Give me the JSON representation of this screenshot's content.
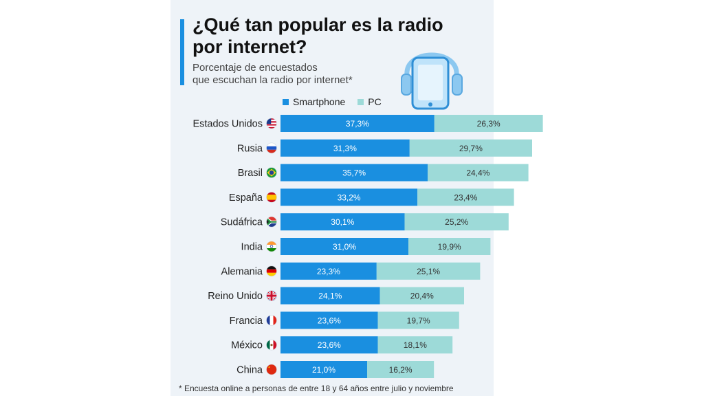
{
  "header": {
    "title": "¿Qué tan popular es la radio por internet?",
    "subtitle_line1": "Porcentaje de encuestados",
    "subtitle_line2": "que escuchan la radio por internet*"
  },
  "footnote": "* Encuesta online a personas de entre 18 y 64 años entre julio y noviembre",
  "colors": {
    "smartphone": "#1a8fe0",
    "pc": "#9ddad8",
    "accent": "#1a8fe0",
    "label_dark": "#ffffff",
    "label_light": "#333333"
  },
  "chart_data": {
    "type": "bar",
    "orientation": "horizontal",
    "stacked": true,
    "categories": [
      "Estados Unidos",
      "Rusia",
      "Brasil",
      "España",
      "Sudáfrica",
      "India",
      "Alemania",
      "Reino Unido",
      "Francia",
      "México",
      "China"
    ],
    "flags": [
      "us",
      "ru",
      "br",
      "es",
      "za",
      "in",
      "de",
      "gb",
      "fr",
      "mx",
      "cn"
    ],
    "series": [
      {
        "name": "Smartphone",
        "values": [
          37.3,
          31.3,
          35.7,
          33.2,
          30.1,
          31.0,
          23.3,
          24.1,
          23.6,
          23.6,
          21.0
        ],
        "labels": [
          "37,3%",
          "31,3%",
          "35,7%",
          "33,2%",
          "30,1%",
          "31,0%",
          "23,3%",
          "24,1%",
          "23,6%",
          "23,6%",
          "21,0%"
        ]
      },
      {
        "name": "PC",
        "values": [
          26.3,
          29.7,
          24.4,
          23.4,
          25.2,
          19.9,
          25.1,
          20.4,
          19.7,
          18.1,
          16.2
        ],
        "labels": [
          "26,3%",
          "29,7%",
          "24,4%",
          "23,4%",
          "25,2%",
          "19,9%",
          "25,1%",
          "20,4%",
          "19,7%",
          "18,1%",
          "16,2%"
        ]
      }
    ],
    "legend_position": "top",
    "grid": false
  },
  "illustration": {
    "icon": "smartphone-headphones-icon"
  }
}
